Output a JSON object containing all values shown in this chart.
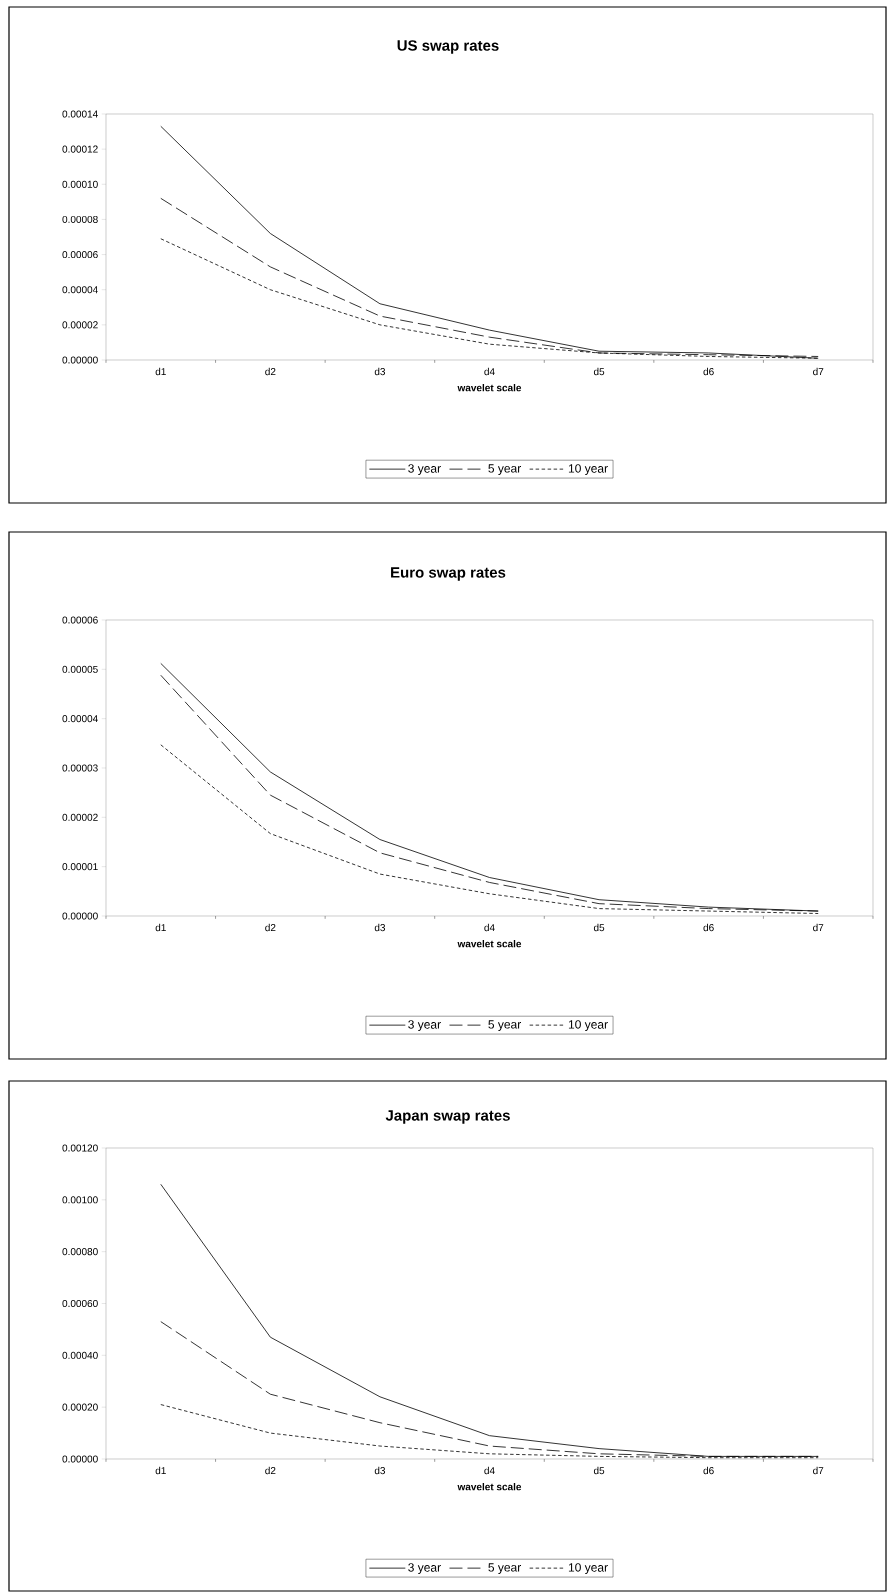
{
  "chart_data": [
    {
      "type": "line",
      "title": "US swap rates",
      "xlabel": "wavelet scale",
      "categories": [
        "d1",
        "d2",
        "d3",
        "d4",
        "d5",
        "d6",
        "d7"
      ],
      "ylim": [
        0,
        0.00014
      ],
      "yticks": [
        {
          "value": 0,
          "label": "0.00000"
        },
        {
          "value": 2e-05,
          "label": "0.00002"
        },
        {
          "value": 4e-05,
          "label": "0.00004"
        },
        {
          "value": 6e-05,
          "label": "0.00006"
        },
        {
          "value": 8e-05,
          "label": "0.00008"
        },
        {
          "value": 0.0001,
          "label": "0.00010"
        },
        {
          "value": 0.00012,
          "label": "0.00012"
        },
        {
          "value": 0.00014,
          "label": "0.00014"
        }
      ],
      "legend": "bottom",
      "grid": false,
      "marker": "none",
      "series": [
        {
          "name": "3 year",
          "color": "#000000",
          "line_style": "solid",
          "values": [
            0.000133,
            7.2e-05,
            3.2e-05,
            1.7e-05,
            5e-06,
            4e-06,
            1e-06
          ]
        },
        {
          "name": "5 year",
          "color": "#000000",
          "line_style": "dashed",
          "values": [
            9.2e-05,
            5.3e-05,
            2.5e-05,
            1.3e-05,
            4e-06,
            3e-06,
            2e-06
          ]
        },
        {
          "name": "10 year",
          "color": "#000000",
          "line_style": "dotted",
          "values": [
            6.9e-05,
            4e-05,
            2e-05,
            9e-06,
            4e-06,
            2e-06,
            1e-06
          ]
        }
      ]
    },
    {
      "type": "line",
      "title": "Euro swap rates",
      "xlabel": "wavelet scale",
      "categories": [
        "d1",
        "d2",
        "d3",
        "d4",
        "d5",
        "d6",
        "d7"
      ],
      "ylim": [
        0,
        6e-05
      ],
      "yticks": [
        {
          "value": 0,
          "label": "0.00000"
        },
        {
          "value": 1e-05,
          "label": "0.00001"
        },
        {
          "value": 2e-05,
          "label": "0.00002"
        },
        {
          "value": 3e-05,
          "label": "0.00003"
        },
        {
          "value": 4e-05,
          "label": "0.00004"
        },
        {
          "value": 5e-05,
          "label": "0.00005"
        },
        {
          "value": 6e-05,
          "label": "0.00006"
        }
      ],
      "legend": "bottom",
      "grid": false,
      "marker": "none",
      "series": [
        {
          "name": "3 year",
          "color": "#000000",
          "line_style": "solid",
          "values": [
            5.12e-05,
            2.92e-05,
            1.55e-05,
            7.8e-06,
            3.3e-06,
            1.8e-06,
            1e-06
          ]
        },
        {
          "name": "5 year",
          "color": "#000000",
          "line_style": "dashed",
          "values": [
            4.88e-05,
            2.45e-05,
            1.28e-05,
            6.8e-06,
            2.5e-06,
            1.5e-06,
            1e-06
          ]
        },
        {
          "name": "10 year",
          "color": "#000000",
          "line_style": "dotted",
          "values": [
            3.47e-05,
            1.67e-05,
            8.5e-06,
            4.5e-06,
            1.5e-06,
            1e-06,
            5e-07
          ]
        }
      ]
    },
    {
      "type": "line",
      "title": "Japan swap rates",
      "xlabel": "wavelet scale",
      "categories": [
        "d1",
        "d2",
        "d3",
        "d4",
        "d5",
        "d6",
        "d7"
      ],
      "ylim": [
        0,
        0.0012
      ],
      "yticks": [
        {
          "value": 0,
          "label": "0.00000"
        },
        {
          "value": 0.0002,
          "label": "0.00020"
        },
        {
          "value": 0.0004,
          "label": "0.00040"
        },
        {
          "value": 0.0006,
          "label": "0.00060"
        },
        {
          "value": 0.0008,
          "label": "0.00080"
        },
        {
          "value": 0.001,
          "label": "0.00100"
        },
        {
          "value": 0.0012,
          "label": "0.00120"
        }
      ],
      "legend": "bottom",
      "grid": false,
      "marker": "none",
      "series": [
        {
          "name": "3 year",
          "color": "#000000",
          "line_style": "solid",
          "values": [
            0.00106,
            0.00047,
            0.00024,
            9e-05,
            4e-05,
            1e-05,
            1e-05
          ]
        },
        {
          "name": "5 year",
          "color": "#000000",
          "line_style": "dashed",
          "values": [
            0.00053,
            0.00025,
            0.00014,
            5e-05,
            2e-05,
            1e-05,
            1e-05
          ]
        },
        {
          "name": "10 year",
          "color": "#000000",
          "line_style": "dotted",
          "values": [
            0.00021,
            0.0001,
            5e-05,
            2e-05,
            1e-05,
            5e-06,
            5e-06
          ]
        }
      ]
    }
  ]
}
